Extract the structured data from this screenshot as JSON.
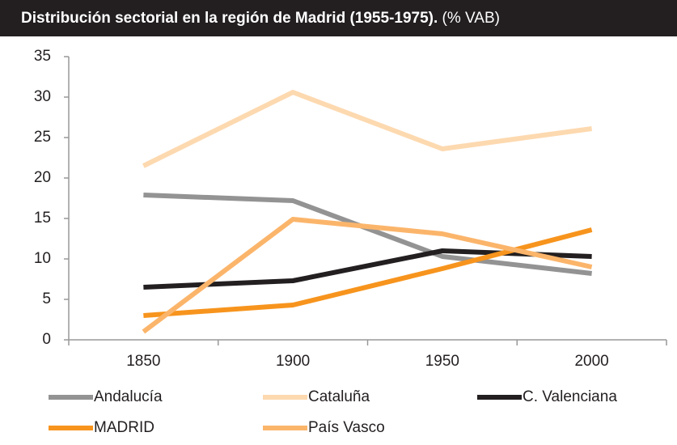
{
  "chart_data": {
    "type": "line",
    "title": "Distribución sectorial en la región de Madrid (1955-1975).",
    "subtitle": "(% VAB)",
    "categories": [
      "1850",
      "1900",
      "1950",
      "2000"
    ],
    "series": [
      {
        "name": "Andalucía",
        "color": "#939393",
        "values": [
          17.9,
          17.2,
          10.3,
          8.2
        ]
      },
      {
        "name": "Cataluña",
        "color": "#fdd9b0",
        "values": [
          21.5,
          30.6,
          23.6,
          26.1
        ]
      },
      {
        "name": "C. Valenciana",
        "color": "#231f20",
        "values": [
          6.5,
          7.3,
          11.0,
          10.3
        ]
      },
      {
        "name": "MADRID",
        "color": "#f7941d",
        "values": [
          3.0,
          4.3,
          8.8,
          13.6
        ]
      },
      {
        "name": "País Vasco",
        "color": "#fbb56b",
        "values": [
          1.0,
          14.9,
          13.1,
          9.0
        ]
      }
    ],
    "ylim": [
      0,
      35
    ],
    "yticks": [
      0,
      5,
      10,
      15,
      20,
      25,
      30,
      35
    ],
    "grid": false
  }
}
